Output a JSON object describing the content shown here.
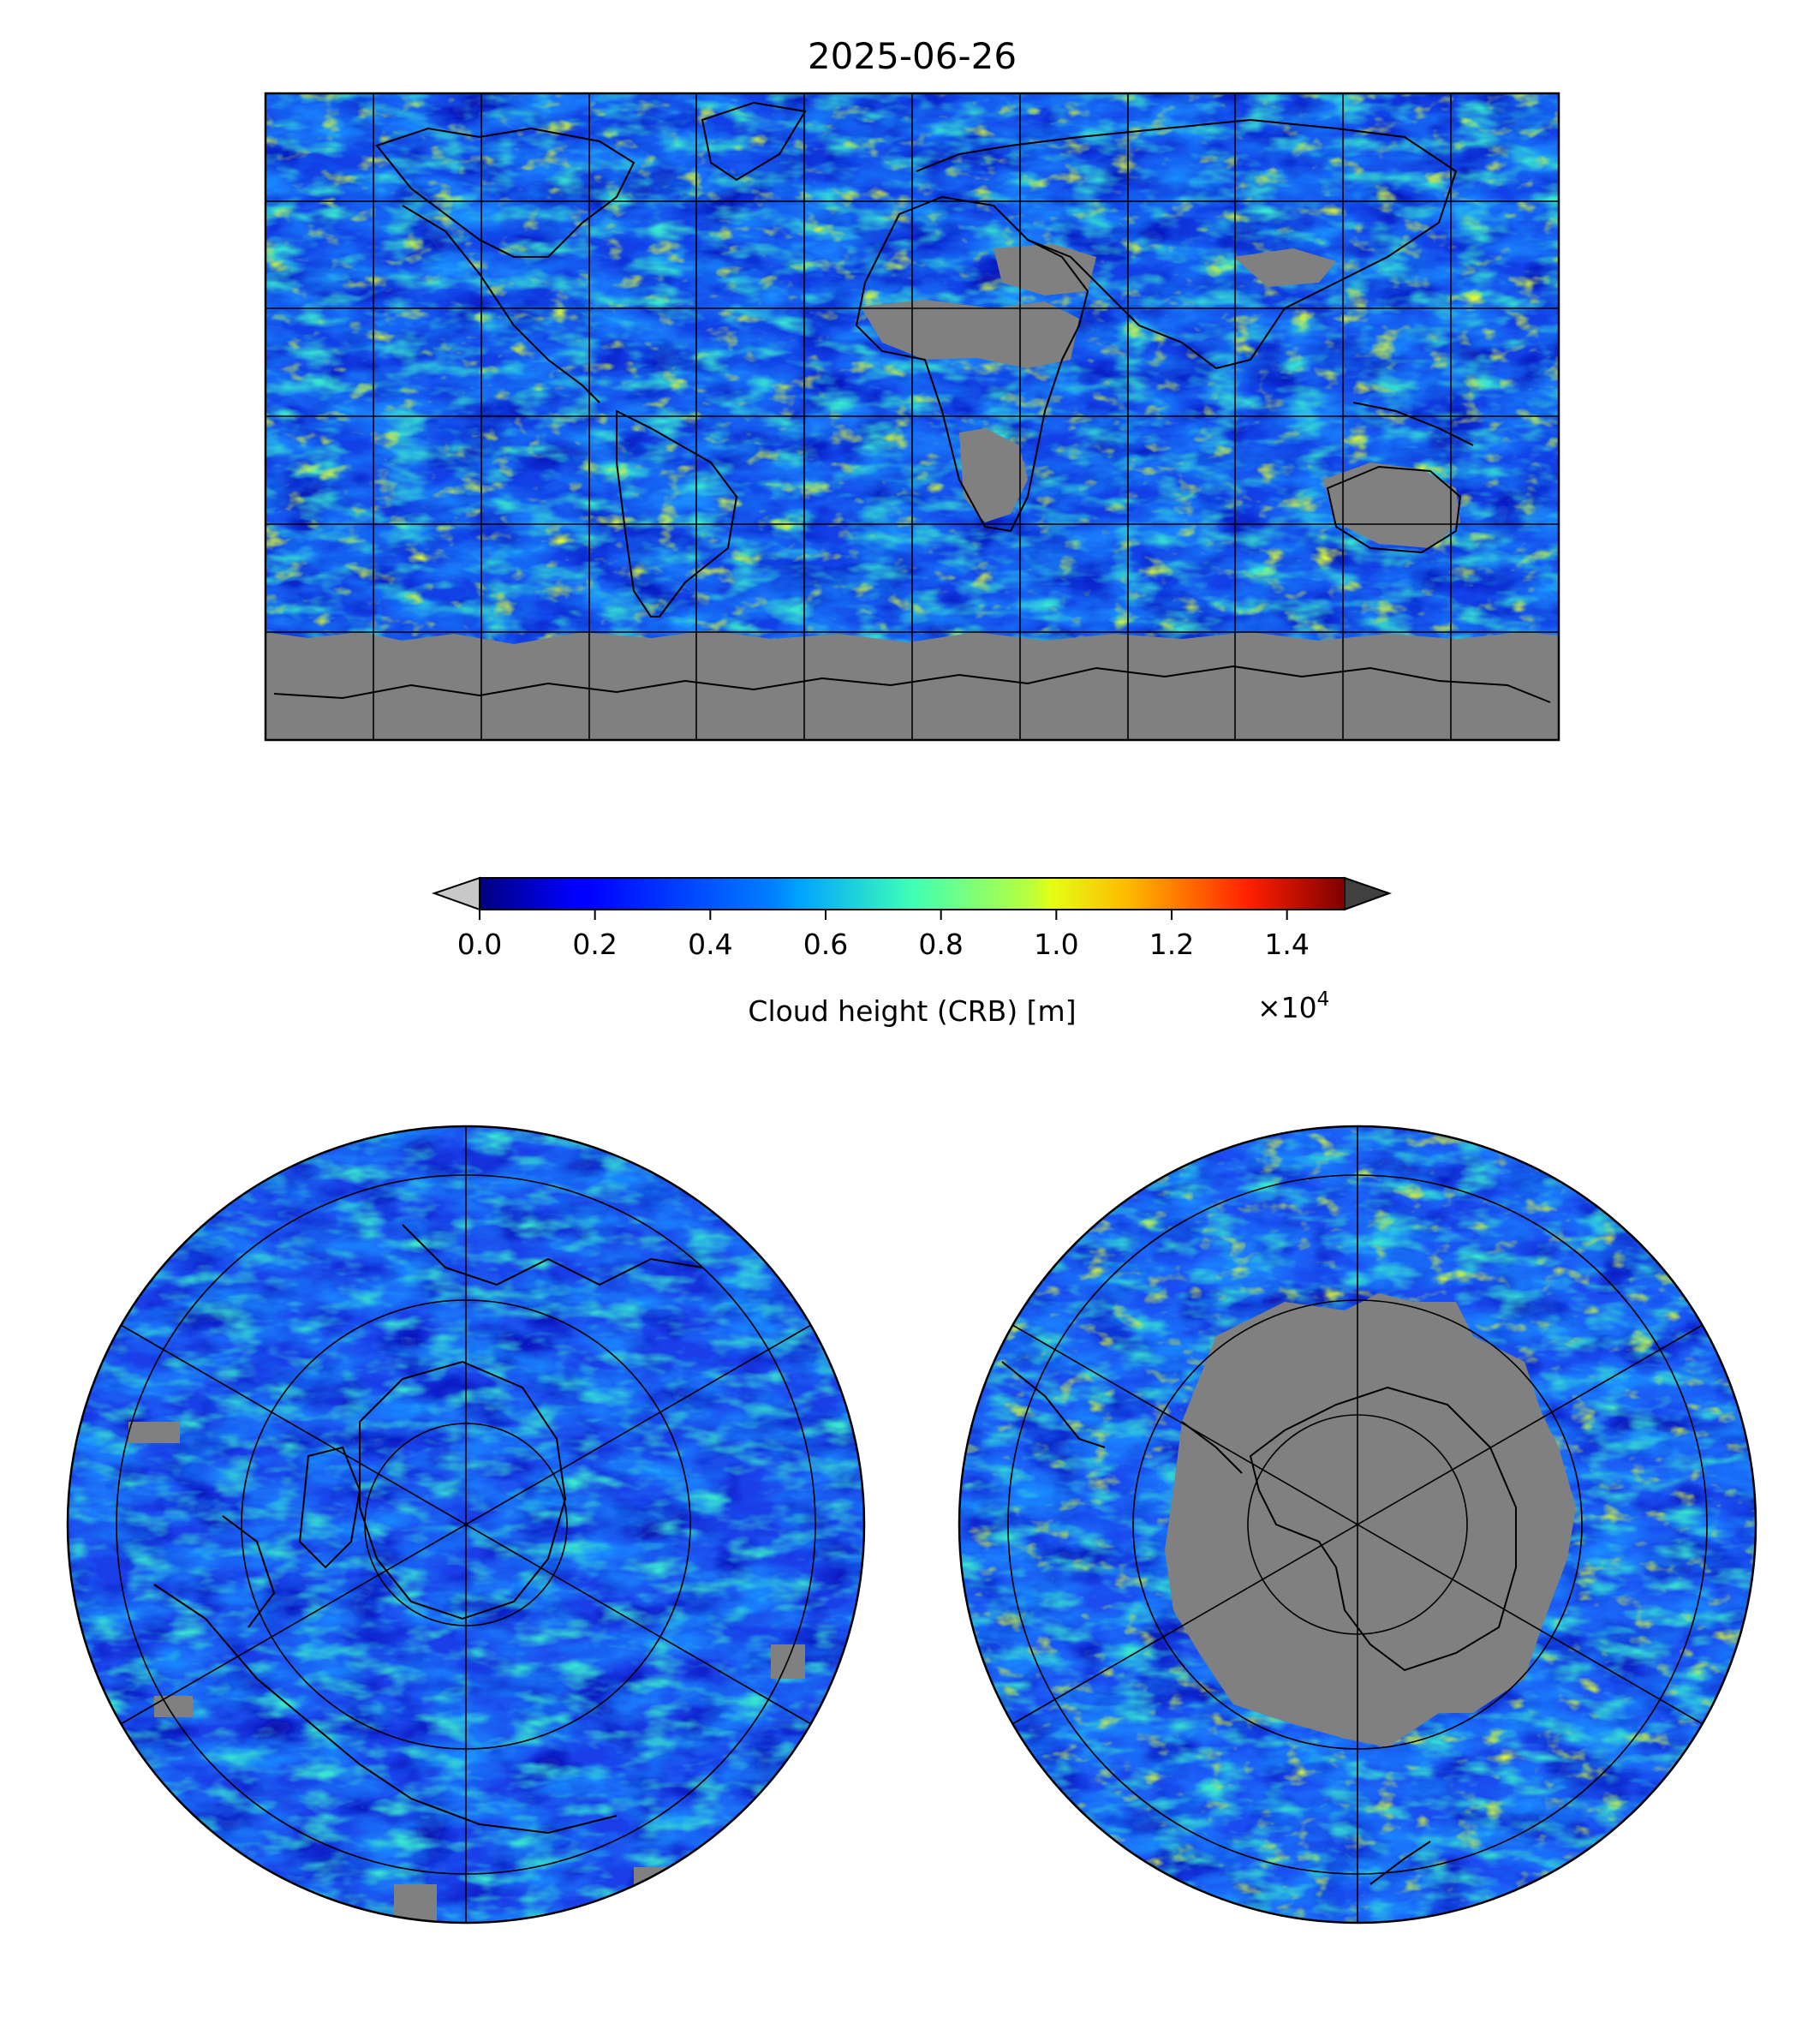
{
  "title": "2025-06-26",
  "colorbar": {
    "label": "Cloud height (CRB) [m]",
    "multiplier_base": "×10",
    "multiplier_exp": "4",
    "ticks": [
      "0.0",
      "0.2",
      "0.4",
      "0.6",
      "0.8",
      "1.0",
      "1.2",
      "1.4"
    ],
    "tick_values": [
      0.0,
      0.2,
      0.4,
      0.6,
      0.8,
      1.0,
      1.2,
      1.4
    ],
    "range": [
      0.0,
      1.5
    ],
    "colormap": "jet",
    "extend": "both",
    "under_color": "#c8c8c8",
    "over_color": "#404040"
  },
  "maps": {
    "global": {
      "projection": "PlateCarree",
      "extent_lon": [
        -180,
        180
      ],
      "extent_lat": [
        -90,
        90
      ],
      "gridlines": true,
      "coastlines": true
    },
    "north_polar": {
      "projection": "NorthPolarStereo",
      "gridlines": true,
      "coastlines": true
    },
    "south_polar": {
      "projection": "SouthPolarStereo",
      "gridlines": true,
      "coastlines": true
    }
  },
  "colors": {
    "no_data": "#808080",
    "coastline": "#000000",
    "gridline": "#000000"
  }
}
